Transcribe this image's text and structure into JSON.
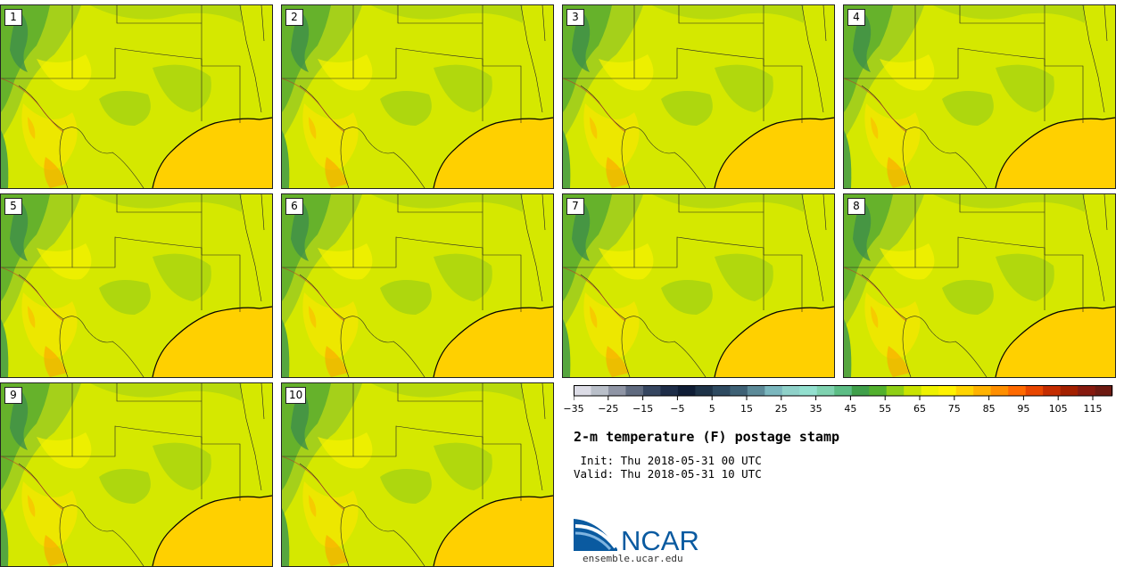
{
  "panels": [
    "1",
    "2",
    "3",
    "4",
    "5",
    "6",
    "7",
    "8",
    "9",
    "10"
  ],
  "colorbar": {
    "tick_labels": [
      "−35",
      "−25",
      "−15",
      "−5",
      "5",
      "15",
      "25",
      "35",
      "45",
      "55",
      "65",
      "75",
      "85",
      "95",
      "105",
      "115"
    ],
    "colors": [
      "#dcdce6",
      "#b9bfc9",
      "#8f95a5",
      "#5f6a7f",
      "#364660",
      "#1e2d48",
      "#0f1d35",
      "#1e3348",
      "#2e4a60",
      "#3e6175",
      "#5c8a98",
      "#7bb7be",
      "#8fd1c9",
      "#93e0cf",
      "#7fd2b0",
      "#5cbd85",
      "#3f9f4a",
      "#52b02e",
      "#8fcf16",
      "#c9e300",
      "#eef200",
      "#fff200",
      "#ffd400",
      "#ffb300",
      "#ff8f00",
      "#ff6a00",
      "#e84600",
      "#c42c00",
      "#a32000",
      "#861a0f",
      "#6d1a12"
    ]
  },
  "title": "2-m temperature (F) postage stamp",
  "init": " Init: Thu 2018-05-31 00 UTC",
  "valid": "Valid: Thu 2018-05-31 10 UTC",
  "logo": {
    "text": "NCAR",
    "url": "ensemble.ucar.edu"
  }
}
